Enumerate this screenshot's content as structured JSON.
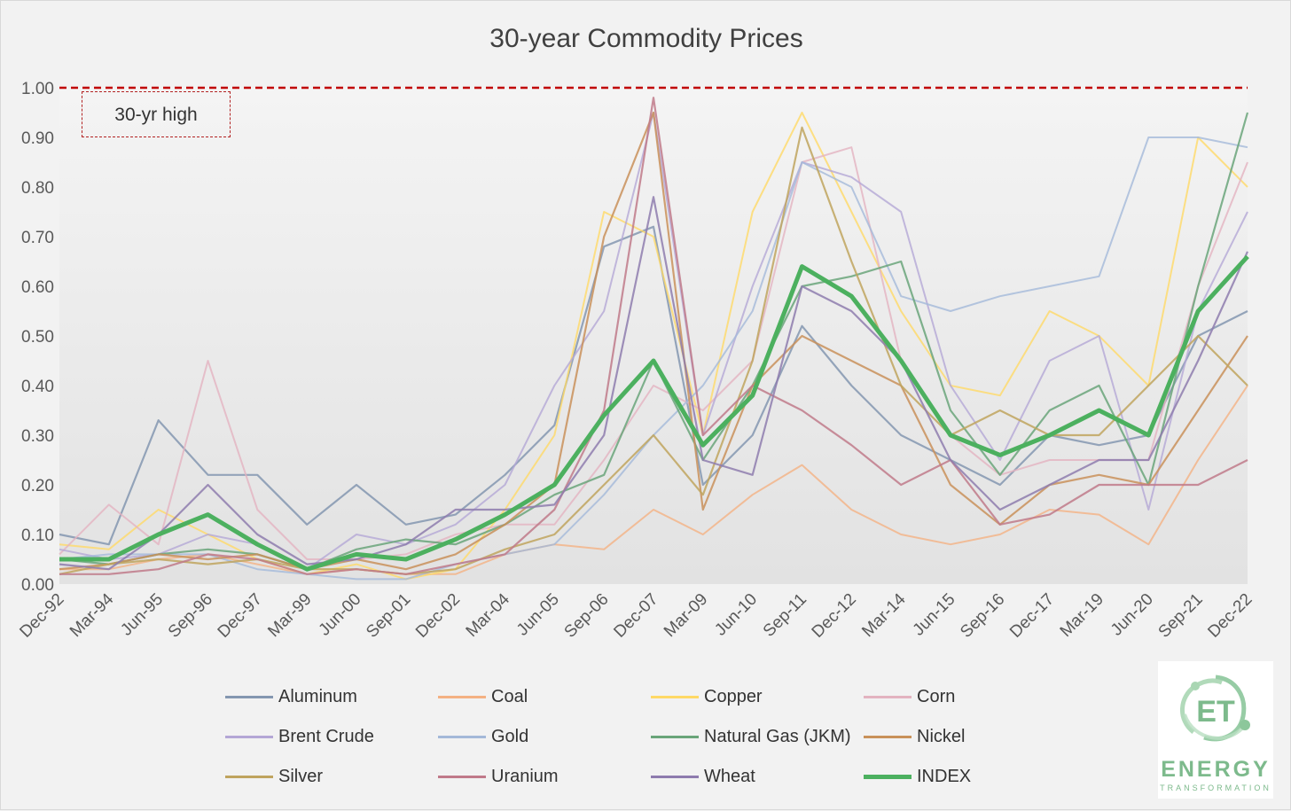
{
  "chart_data": {
    "type": "line",
    "title": "30-year Commodity Prices",
    "xlabel": "",
    "ylabel": "",
    "ylim": [
      0,
      1
    ],
    "yticks": [
      "0.00",
      "0.10",
      "0.20",
      "0.30",
      "0.40",
      "0.50",
      "0.60",
      "0.70",
      "0.80",
      "0.90",
      "1.00"
    ],
    "x_tick_labels": [
      "Dec-92",
      "Mar-94",
      "Jun-95",
      "Sep-96",
      "Dec-97",
      "Mar-99",
      "Jun-00",
      "Sep-01",
      "Dec-02",
      "Mar-04",
      "Jun-05",
      "Sep-06",
      "Dec-07",
      "Mar-09",
      "Jun-10",
      "Sep-11",
      "Dec-12",
      "Mar-14",
      "Jun-15",
      "Sep-16",
      "Dec-17",
      "Mar-19",
      "Jun-20",
      "Sep-21",
      "Dec-22"
    ],
    "x": [
      "Dec-92",
      "Mar-94",
      "Jun-95",
      "Sep-96",
      "Dec-97",
      "Mar-99",
      "Jun-00",
      "Sep-01",
      "Dec-02",
      "Mar-04",
      "Jun-05",
      "Sep-06",
      "Dec-07",
      "Mar-09",
      "Jun-10",
      "Sep-11",
      "Dec-12",
      "Mar-14",
      "Jun-15",
      "Sep-16",
      "Dec-17",
      "Mar-19",
      "Jun-20",
      "Sep-21",
      "Dec-22"
    ],
    "reference_line": {
      "y": 1.0,
      "label": "30-yr high",
      "color": "#c00000"
    },
    "legend_position": "bottom",
    "grid": false,
    "series": [
      {
        "name": "Aluminum",
        "color": "#8497b0",
        "width": 2.2,
        "opacity": 0.85,
        "values": [
          0.1,
          0.08,
          0.33,
          0.22,
          0.22,
          0.12,
          0.2,
          0.12,
          0.14,
          0.22,
          0.32,
          0.68,
          0.72,
          0.2,
          0.3,
          0.52,
          0.4,
          0.3,
          0.25,
          0.2,
          0.3,
          0.28,
          0.3,
          0.5,
          0.55
        ]
      },
      {
        "name": "Coal",
        "color": "#f4b183",
        "width": 2,
        "opacity": 0.8,
        "values": [
          0.03,
          0.03,
          0.05,
          0.06,
          0.04,
          0.02,
          0.03,
          0.02,
          0.02,
          0.06,
          0.08,
          0.07,
          0.15,
          0.1,
          0.18,
          0.24,
          0.15,
          0.1,
          0.08,
          0.1,
          0.15,
          0.14,
          0.08,
          0.25,
          0.4
        ]
      },
      {
        "name": "Copper",
        "color": "#ffd966",
        "width": 2,
        "opacity": 0.8,
        "values": [
          0.08,
          0.07,
          0.15,
          0.1,
          0.05,
          0.02,
          0.04,
          0.01,
          0.03,
          0.15,
          0.3,
          0.75,
          0.7,
          0.3,
          0.75,
          0.95,
          0.75,
          0.55,
          0.4,
          0.38,
          0.55,
          0.5,
          0.4,
          0.9,
          0.8
        ]
      },
      {
        "name": "Corn",
        "color": "#e3b3c0",
        "width": 2,
        "opacity": 0.8,
        "values": [
          0.06,
          0.16,
          0.08,
          0.45,
          0.15,
          0.05,
          0.05,
          0.06,
          0.1,
          0.12,
          0.12,
          0.25,
          0.4,
          0.35,
          0.45,
          0.85,
          0.88,
          0.45,
          0.3,
          0.22,
          0.25,
          0.25,
          0.25,
          0.6,
          0.85
        ]
      },
      {
        "name": "Brent Crude",
        "color": "#b4a7d6",
        "width": 2,
        "opacity": 0.8,
        "values": [
          0.07,
          0.05,
          0.06,
          0.1,
          0.08,
          0.03,
          0.1,
          0.08,
          0.12,
          0.2,
          0.4,
          0.55,
          0.95,
          0.3,
          0.6,
          0.85,
          0.82,
          0.75,
          0.4,
          0.25,
          0.45,
          0.5,
          0.15,
          0.55,
          0.75
        ]
      },
      {
        "name": "Gold",
        "color": "#a4b9d9",
        "width": 2,
        "opacity": 0.8,
        "values": [
          0.05,
          0.06,
          0.06,
          0.06,
          0.03,
          0.02,
          0.01,
          0.01,
          0.04,
          0.06,
          0.08,
          0.18,
          0.3,
          0.4,
          0.55,
          0.85,
          0.8,
          0.58,
          0.55,
          0.58,
          0.6,
          0.62,
          0.9,
          0.9,
          0.88
        ]
      },
      {
        "name": "Natural Gas (JKM)",
        "color": "#6aa57a",
        "width": 2.2,
        "opacity": 0.85,
        "values": [
          0.05,
          0.04,
          0.06,
          0.07,
          0.06,
          0.03,
          0.07,
          0.09,
          0.08,
          0.12,
          0.18,
          0.22,
          0.45,
          0.25,
          0.4,
          0.6,
          0.62,
          0.65,
          0.35,
          0.22,
          0.35,
          0.4,
          0.2,
          0.6,
          0.95
        ]
      },
      {
        "name": "Nickel",
        "color": "#c9915a",
        "width": 2.2,
        "opacity": 0.85,
        "values": [
          0.03,
          0.04,
          0.06,
          0.05,
          0.06,
          0.03,
          0.05,
          0.03,
          0.06,
          0.12,
          0.2,
          0.7,
          0.95,
          0.15,
          0.4,
          0.5,
          0.45,
          0.4,
          0.2,
          0.12,
          0.2,
          0.22,
          0.2,
          0.35,
          0.5
        ]
      },
      {
        "name": "Silver",
        "color": "#bfa45e",
        "width": 2.2,
        "opacity": 0.85,
        "values": [
          0.02,
          0.04,
          0.05,
          0.04,
          0.05,
          0.03,
          0.03,
          0.02,
          0.03,
          0.07,
          0.1,
          0.2,
          0.3,
          0.18,
          0.45,
          0.92,
          0.65,
          0.4,
          0.3,
          0.35,
          0.3,
          0.3,
          0.4,
          0.5,
          0.4
        ]
      },
      {
        "name": "Uranium",
        "color": "#c07a8a",
        "width": 2.2,
        "opacity": 0.85,
        "values": [
          0.02,
          0.02,
          0.03,
          0.06,
          0.05,
          0.02,
          0.03,
          0.02,
          0.04,
          0.06,
          0.15,
          0.35,
          0.98,
          0.3,
          0.4,
          0.35,
          0.28,
          0.2,
          0.25,
          0.12,
          0.14,
          0.2,
          0.2,
          0.2,
          0.25
        ]
      },
      {
        "name": "Wheat",
        "color": "#8e7cae",
        "width": 2.2,
        "opacity": 0.85,
        "values": [
          0.04,
          0.03,
          0.1,
          0.2,
          0.1,
          0.04,
          0.05,
          0.08,
          0.15,
          0.15,
          0.16,
          0.3,
          0.78,
          0.25,
          0.22,
          0.6,
          0.55,
          0.45,
          0.25,
          0.15,
          0.2,
          0.25,
          0.25,
          0.45,
          0.67
        ]
      },
      {
        "name": "INDEX",
        "color": "#4cb05f",
        "width": 5,
        "opacity": 1,
        "values": [
          0.05,
          0.05,
          0.1,
          0.14,
          0.08,
          0.03,
          0.06,
          0.05,
          0.09,
          0.14,
          0.2,
          0.34,
          0.45,
          0.28,
          0.38,
          0.64,
          0.58,
          0.45,
          0.3,
          0.26,
          0.3,
          0.35,
          0.3,
          0.55,
          0.66
        ]
      }
    ]
  },
  "annotation": {
    "label": "30-yr high"
  },
  "legend": {
    "items": [
      "Aluminum",
      "Coal",
      "Copper",
      "Corn",
      "Brent Crude",
      "Gold",
      "Natural Gas (JKM)",
      "Nickel",
      "Silver",
      "Uranium",
      "Wheat",
      "INDEX"
    ]
  },
  "logo": {
    "monogram": "ET",
    "word": "ENERGY",
    "sub": "TRANSFORMATION",
    "color": "#7dba8c"
  }
}
